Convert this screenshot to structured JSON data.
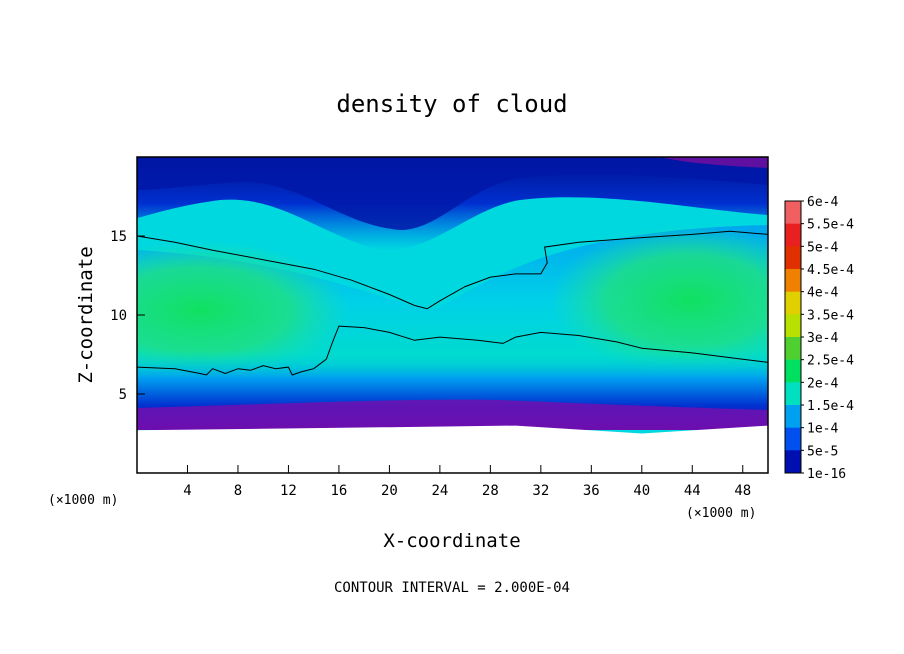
{
  "chart_data": {
    "type": "heatmap",
    "title": "density of cloud",
    "xlabel": "X-coordinate",
    "ylabel": "Z-coordinate",
    "x_unit": "(×1000 m)",
    "y_unit": "(×1000 m)",
    "xlim": [
      0,
      50
    ],
    "ylim": [
      0,
      20
    ],
    "x_ticks": [
      4,
      8,
      12,
      16,
      20,
      24,
      28,
      32,
      36,
      40,
      44,
      48
    ],
    "y_ticks": [
      5,
      10,
      15
    ],
    "note": "CONTOUR INTERVAL = 2.000E-04",
    "colorbar": {
      "labels": [
        "6e-4",
        "5.5e-4",
        "5e-4",
        "4.5e-4",
        "4e-4",
        "3.5e-4",
        "3e-4",
        "2.5e-4",
        "2e-4",
        "1.5e-4",
        "1e-4",
        "5e-5",
        "1e-16"
      ],
      "colors": [
        "#f06060",
        "#e82020",
        "#e03000",
        "#f08000",
        "#e0d000",
        "#b8e000",
        "#50d030",
        "#00e060",
        "#00e0c0",
        "#00a0f0",
        "#0050f0",
        "#0010b0",
        "#7000a0"
      ]
    },
    "contour_lines": [
      {
        "level": 0.0002,
        "points": [
          [
            0,
            15
          ],
          [
            3,
            14.6
          ],
          [
            6,
            14.1
          ],
          [
            10,
            13.5
          ],
          [
            14,
            12.9
          ],
          [
            17,
            12.2
          ],
          [
            20,
            11.3
          ],
          [
            22,
            10.6
          ],
          [
            23,
            10.4
          ],
          [
            24,
            10.9
          ],
          [
            26,
            11.8
          ],
          [
            28,
            12.4
          ],
          [
            30,
            12.6
          ],
          [
            32,
            12.6
          ],
          [
            32.5,
            13.3
          ],
          [
            32.3,
            14.3
          ],
          [
            35,
            14.6
          ],
          [
            40,
            14.9
          ],
          [
            44,
            15.1
          ],
          [
            47,
            15.3
          ],
          [
            50,
            15.1
          ]
        ]
      },
      {
        "level": 0.0002,
        "points": [
          [
            0,
            6.7
          ],
          [
            3,
            6.6
          ],
          [
            5,
            6.3
          ],
          [
            5.5,
            6.2
          ],
          [
            6,
            6.6
          ],
          [
            7,
            6.3
          ],
          [
            8,
            6.6
          ],
          [
            9,
            6.5
          ],
          [
            10,
            6.8
          ],
          [
            11,
            6.6
          ],
          [
            12,
            6.7
          ],
          [
            12.3,
            6.2
          ],
          [
            13,
            6.4
          ],
          [
            14,
            6.6
          ],
          [
            15,
            7.2
          ],
          [
            15.5,
            8.3
          ],
          [
            16,
            9.3
          ],
          [
            18,
            9.2
          ],
          [
            20,
            8.9
          ],
          [
            22,
            8.4
          ],
          [
            24,
            8.6
          ],
          [
            27,
            8.4
          ],
          [
            29,
            8.2
          ],
          [
            30,
            8.6
          ],
          [
            32,
            8.9
          ],
          [
            35,
            8.7
          ],
          [
            38,
            8.3
          ],
          [
            40,
            7.9
          ],
          [
            44,
            7.6
          ],
          [
            48,
            7.2
          ],
          [
            50,
            7.0
          ]
        ]
      }
    ],
    "terrain_top": [
      [
        0,
        2.7
      ],
      [
        10,
        2.8
      ],
      [
        20,
        2.9
      ],
      [
        30,
        3.0
      ],
      [
        40,
        2.5
      ],
      [
        50,
        3.0
      ]
    ]
  }
}
